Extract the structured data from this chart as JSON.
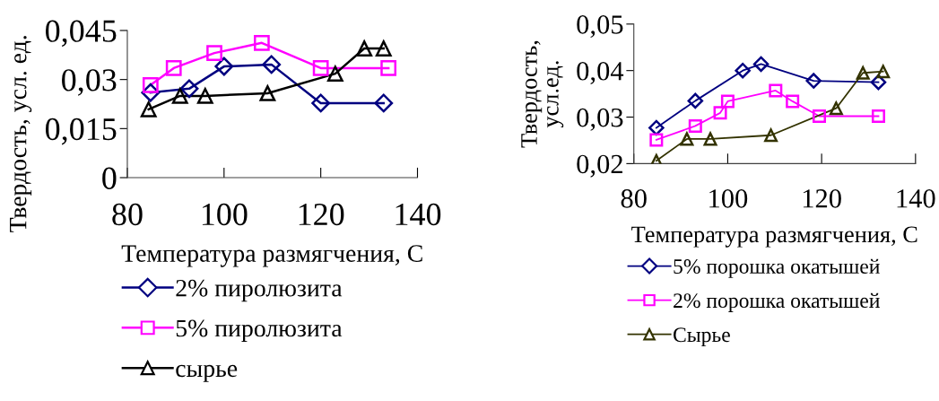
{
  "chart_data": [
    {
      "type": "line",
      "xlabel": "Температура размягчения, С",
      "ylabel": "Твердость, усл. ед.",
      "xlim": [
        80,
        140
      ],
      "xticks": [
        80,
        100,
        120,
        140
      ],
      "ylim": [
        0,
        0.045
      ],
      "yticks": [
        0,
        {
          "value": 0.015,
          "label": "0,015"
        },
        {
          "value": 0.03,
          "label": "0,03"
        },
        {
          "value": 0.045,
          "label": "0,045"
        }
      ],
      "grid": false,
      "legend": "bottom",
      "line_style": "solid",
      "series": [
        {
          "name": "2% пиролюзита",
          "color": "#000080",
          "marker": "diamond",
          "x": [
            84.8,
            92.8,
            100,
            109.8,
            120,
            133
          ],
          "values": [
            0.026,
            0.0272,
            0.034,
            0.0346,
            0.0228,
            0.0228
          ]
        },
        {
          "name": "5% пиролюзита",
          "color": "#ff00ff",
          "marker": "square",
          "x": [
            84.8,
            89.6,
            98,
            107.8,
            120,
            134
          ],
          "values": [
            0.0283,
            0.0335,
            0.0381,
            0.0412,
            0.0335,
            0.0335
          ]
        },
        {
          "name": "сырье",
          "color": "#000000",
          "marker": "triangle",
          "x": [
            84.4,
            90.9,
            96.1,
            109,
            123,
            129,
            133
          ],
          "values": [
            0.0209,
            0.025,
            0.025,
            0.0258,
            0.0318,
            0.0395,
            0.0395
          ]
        }
      ]
    },
    {
      "type": "line",
      "xlabel": "Температура размягчения, С",
      "ylabel": "Твердость,\nусл.ед.",
      "xlim": [
        80,
        140
      ],
      "xticks": [
        80,
        100,
        120,
        140
      ],
      "ylim": [
        0.02,
        0.05
      ],
      "yticks": [
        {
          "value": 0.02,
          "label": "0,02"
        },
        {
          "value": 0.03,
          "label": "0,03"
        },
        {
          "value": 0.04,
          "label": "0,04"
        },
        {
          "value": 0.05,
          "label": "0,05"
        }
      ],
      "grid": false,
      "legend": "bottom",
      "line_style": "solid",
      "series": [
        {
          "name": "5% порошка окатышей",
          "color": "#000080",
          "marker": "diamond",
          "x": [
            84.8,
            93.1,
            103.2,
            107.1,
            118.3,
            132.1
          ],
          "values": [
            0.0277,
            0.0335,
            0.04,
            0.0414,
            0.0378,
            0.0375
          ]
        },
        {
          "name": "2% порошка окатышей",
          "color": "#ff00ff",
          "marker": "square",
          "x": [
            84.8,
            93.1,
            98.4,
            100,
            110.2,
            113.8,
            119.5,
            132.1
          ],
          "values": [
            0.0251,
            0.0281,
            0.0309,
            0.0334,
            0.0357,
            0.0334,
            0.0302,
            0.0302
          ]
        },
        {
          "name": "Сырье",
          "color": "#333300",
          "marker": "triangle",
          "x": [
            84.8,
            91.3,
            96.3,
            109.2,
            123.1,
            128.8,
            133.1
          ],
          "values": [
            0.0206,
            0.0253,
            0.0253,
            0.0261,
            0.0319,
            0.0395,
            0.0398
          ]
        }
      ]
    }
  ]
}
